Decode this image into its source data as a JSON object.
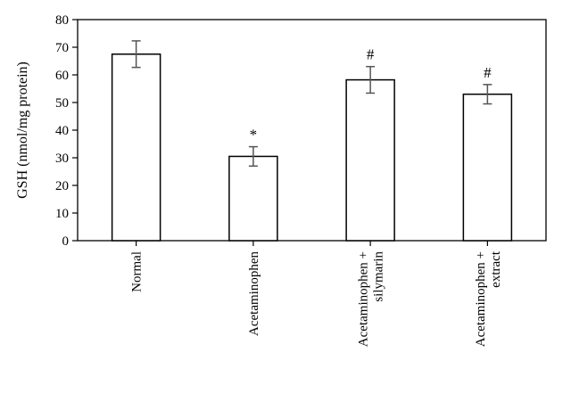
{
  "chart_data": {
    "type": "bar",
    "ylabel": "GSH (nmol/mg protein)",
    "ylim": [
      0,
      80
    ],
    "yticks": [
      0,
      10,
      20,
      30,
      40,
      50,
      60,
      70,
      80
    ],
    "grid": false,
    "categories": [
      {
        "lines": [
          "Normal"
        ]
      },
      {
        "lines": [
          "Acetaminophen"
        ]
      },
      {
        "lines": [
          "Acetaminophen +",
          "silymarin"
        ]
      },
      {
        "lines": [
          "Acetaminophen +",
          "extract"
        ]
      }
    ],
    "values": [
      67.5,
      30.5,
      58.2,
      53.0
    ],
    "errors": [
      4.8,
      3.5,
      4.8,
      3.5
    ],
    "annotations": [
      "",
      "*",
      "#",
      "#"
    ],
    "bar_fill": "#ffffff",
    "bar_stroke": "#000000",
    "error_color": "#555555"
  }
}
